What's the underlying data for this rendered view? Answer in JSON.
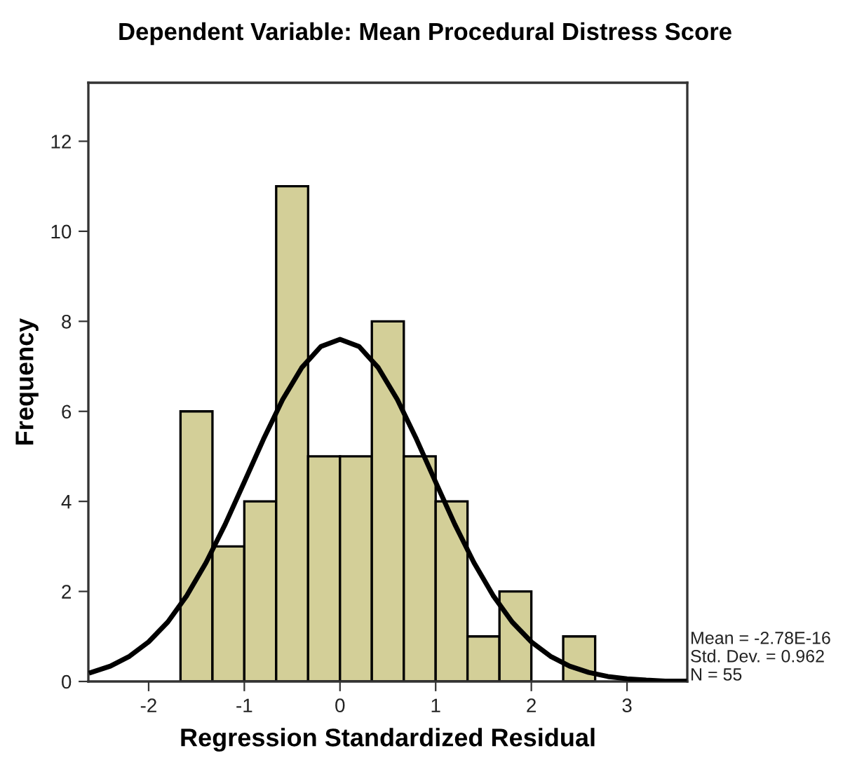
{
  "chart_data": {
    "type": "histogram",
    "title": "Dependent Variable: Mean Procedural Distress Score",
    "xlabel": "Regression Standardized Residual",
    "ylabel": "Frequency",
    "bins": [
      -1.667,
      -1.333,
      -1.0,
      -0.667,
      -0.333,
      0.0,
      0.333,
      0.667,
      1.0,
      1.333,
      1.667,
      2.0,
      2.333,
      2.667
    ],
    "values": [
      6,
      3,
      4,
      11,
      5,
      5,
      8,
      5,
      4,
      1,
      2,
      0,
      1
    ],
    "color": "#d3cf98",
    "series": [
      {
        "type": "line",
        "color": "#000000",
        "x": [
          -2.6,
          -2.4,
          -2.2,
          -2.0,
          -1.8,
          -1.6,
          -1.4,
          -1.2,
          -1.0,
          -0.8,
          -0.6,
          -0.4,
          -0.2,
          0.0,
          0.2,
          0.4,
          0.6,
          0.8,
          1.0,
          1.2,
          1.4,
          1.6,
          1.8,
          2.0,
          2.2,
          2.4,
          2.6,
          2.8,
          3.0,
          3.2,
          3.4,
          3.6
        ],
        "values": [
          0.2,
          0.34,
          0.56,
          0.88,
          1.32,
          1.91,
          2.64,
          3.49,
          4.43,
          5.38,
          6.26,
          6.97,
          7.44,
          7.6,
          7.44,
          6.97,
          6.26,
          5.38,
          4.43,
          3.49,
          2.64,
          1.91,
          1.32,
          0.88,
          0.56,
          0.34,
          0.2,
          0.11,
          0.06,
          0.03,
          0.01,
          0.01
        ]
      }
    ],
    "xlim": [
      -2.63,
      3.63
    ],
    "xticks": [
      -2,
      -1,
      0,
      1,
      2,
      3
    ],
    "ylim": [
      0,
      13.3
    ],
    "yticks": [
      0,
      2,
      4,
      6,
      8,
      10,
      12
    ],
    "grid": false,
    "legend": false,
    "annotations": [
      "Mean = -2.78E-16",
      "Std. Dev. = 0.962",
      "N = 55"
    ]
  }
}
